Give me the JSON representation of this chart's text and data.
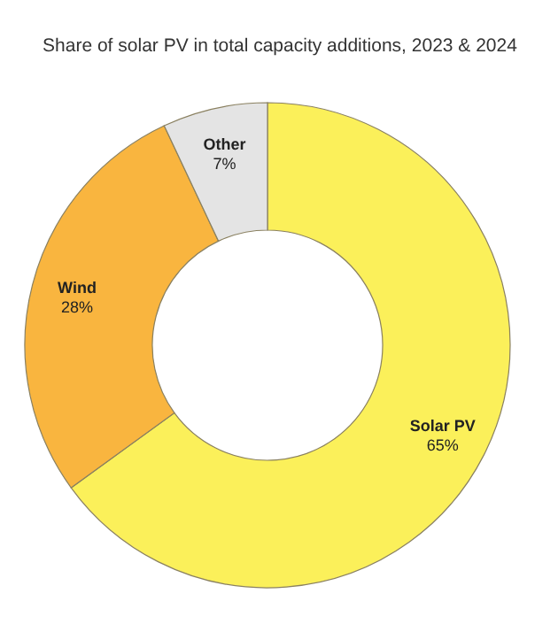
{
  "chart_data": {
    "type": "donut",
    "title": "Share of solar PV in total capacity additions, 2023 & 2024",
    "categories": [
      "Solar PV",
      "Wind",
      "Other"
    ],
    "values": [
      65,
      28,
      7
    ],
    "value_labels": [
      "65%",
      "28%",
      "7%"
    ],
    "colors": [
      "#fbf05a",
      "#f9b53f",
      "#e4e4e4"
    ]
  }
}
